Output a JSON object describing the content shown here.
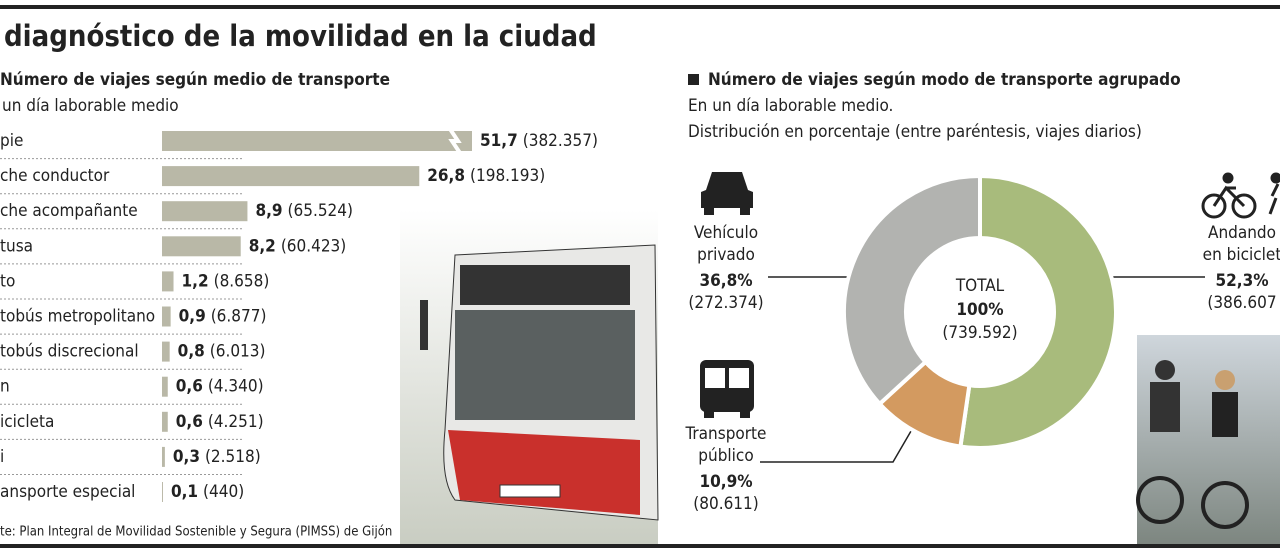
{
  "header": {
    "title": "diagnóstico de la movilidad en la ciudad"
  },
  "chart_data": [
    {
      "type": "bar",
      "title": "Número de viajes según medio de transporte",
      "subtitle": "un día laborable medio",
      "categories": [
        "pie",
        "che conductor",
        "che acompañante",
        "tusa",
        "to",
        "tobús metropolitano",
        "tobús discrecional",
        "n",
        "icicleta",
        "i",
        "ansporte especial"
      ],
      "values": [
        51.7,
        26.8,
        8.9,
        8.2,
        1.2,
        0.9,
        0.8,
        0.6,
        0.6,
        0.3,
        0.1
      ],
      "value_labels": [
        "51,7",
        "26,8",
        "8,9",
        "8,2",
        "1,2",
        "0,9",
        "0,8",
        "0,6",
        "0,6",
        "0,3",
        "0,1"
      ],
      "trips": [
        "(382.357)",
        "(198.193)",
        "(65.524)",
        "(60.423)",
        "(8.658)",
        "(6.877)",
        "(6.013)",
        "(4.340)",
        "(4.251)",
        "(2.518)",
        "(440)"
      ],
      "color": "#b9b8a7",
      "xlim": [
        0,
        30
      ],
      "axis_break": true,
      "source": "te: Plan Integral de Movilidad Sostenible y Segura (PIMSS) de Gijón"
    },
    {
      "type": "pie",
      "title": "Número de viajes según modo de transporte agrupado",
      "subtitle": [
        "En un día laborable medio.",
        "Distribución en porcentaje (entre paréntesis, viajes diarios)"
      ],
      "categories": [
        [
          "Andando",
          "en biciclet"
        ],
        [
          "Transporte",
          "público"
        ],
        [
          "Vehículo",
          "privado"
        ]
      ],
      "values": [
        52.3,
        10.9,
        36.8
      ],
      "value_labels": [
        "52,3%",
        "10,9%",
        "36,8%"
      ],
      "trips": [
        "(386.607",
        "(80.611)",
        "(272.374)"
      ],
      "colors": [
        "#a8bb7c",
        "#d39a60",
        "#b2b3b0"
      ],
      "center": {
        "title": "TOTAL",
        "value": "100%",
        "trips": "(739.592)"
      }
    }
  ]
}
